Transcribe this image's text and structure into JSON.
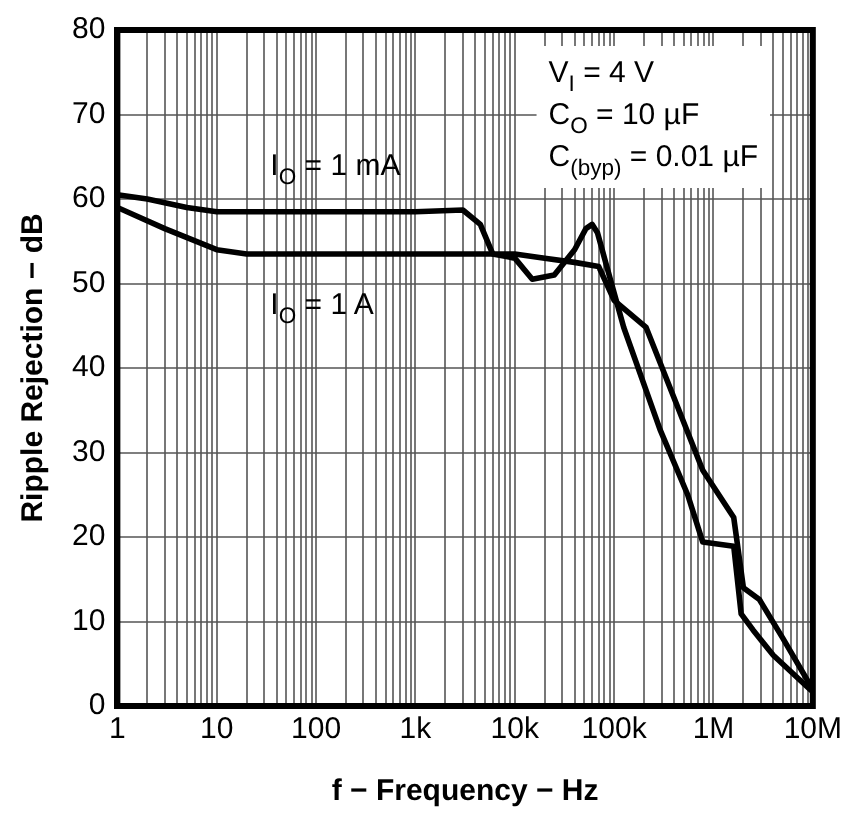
{
  "chart_data": {
    "type": "line",
    "xlabel": "f − Frequency − Hz",
    "ylabel": "Ripple Rejection − dB",
    "annotations": [
      "V$_{I}$ = 4 V",
      "C$_{O}$ = 10 µF",
      "C$_{(byp)}$ = 0.01 µF"
    ],
    "log": "x",
    "grid": true,
    "legend": false,
    "marker": "none",
    "line_style": "solid",
    "xlim": [
      1,
      10000000
    ],
    "ylim": [
      0,
      80
    ],
    "yticks": [
      0,
      10,
      20,
      30,
      40,
      50,
      60,
      70,
      80
    ],
    "xticks": [
      1,
      {
        "value": 2,
        "label": null
      },
      {
        "value": 3,
        "label": null
      },
      {
        "value": 4,
        "label": null
      },
      {
        "value": 5,
        "label": null
      },
      {
        "value": 6,
        "label": null
      },
      {
        "value": 7,
        "label": null
      },
      {
        "value": 8,
        "label": null
      },
      {
        "value": 9,
        "label": null
      },
      10,
      {
        "value": 20,
        "label": null
      },
      {
        "value": 30,
        "label": null
      },
      {
        "value": 40,
        "label": null
      },
      {
        "value": 50,
        "label": null
      },
      {
        "value": 60,
        "label": null
      },
      {
        "value": 70,
        "label": null
      },
      {
        "value": 80,
        "label": null
      },
      {
        "value": 90,
        "label": null
      },
      100,
      {
        "value": 200,
        "label": null
      },
      {
        "value": 300,
        "label": null
      },
      {
        "value": 400,
        "label": null
      },
      {
        "value": 500,
        "label": null
      },
      {
        "value": 600,
        "label": null
      },
      {
        "value": 700,
        "label": null
      },
      {
        "value": 800,
        "label": null
      },
      {
        "value": 900,
        "label": null
      },
      {
        "value": 1000,
        "label": "1k"
      },
      {
        "value": 2000,
        "label": null
      },
      {
        "value": 3000,
        "label": null
      },
      {
        "value": 4000,
        "label": null
      },
      {
        "value": 5000,
        "label": null
      },
      {
        "value": 6000,
        "label": null
      },
      {
        "value": 7000,
        "label": null
      },
      {
        "value": 8000,
        "label": null
      },
      {
        "value": 9000,
        "label": null
      },
      {
        "value": 10000,
        "label": "10k"
      },
      {
        "value": 20000,
        "label": null
      },
      {
        "value": 30000,
        "label": null
      },
      {
        "value": 40000,
        "label": null
      },
      {
        "value": 50000,
        "label": null
      },
      {
        "value": 60000,
        "label": null
      },
      {
        "value": 70000,
        "label": null
      },
      {
        "value": 80000,
        "label": null
      },
      {
        "value": 90000,
        "label": null
      },
      {
        "value": 100000,
        "label": "100k"
      },
      {
        "value": 200000,
        "label": null
      },
      {
        "value": 300000,
        "label": null
      },
      {
        "value": 400000,
        "label": null
      },
      {
        "value": 500000,
        "label": null
      },
      {
        "value": 600000,
        "label": null
      },
      {
        "value": 700000,
        "label": null
      },
      {
        "value": 800000,
        "label": null
      },
      {
        "value": 900000,
        "label": null
      },
      {
        "value": 1000000,
        "label": "1M"
      },
      {
        "value": 2000000,
        "label": null
      },
      {
        "value": 3000000,
        "label": null
      },
      {
        "value": 4000000,
        "label": null
      },
      {
        "value": 5000000,
        "label": null
      },
      {
        "value": 6000000,
        "label": null
      },
      {
        "value": 7000000,
        "label": null
      },
      {
        "value": 8000000,
        "label": null
      },
      {
        "value": 9000000,
        "label": null
      },
      {
        "value": 10000000,
        "label": "10M"
      }
    ],
    "series": [
      {
        "name": "I$_{O}$ = 1 mA",
        "color": "#000000",
        "x": [
          1,
          2,
          5,
          10,
          100,
          1000,
          3000,
          4500,
          6000,
          10000,
          15000,
          25000,
          40000,
          52000,
          60000,
          68000,
          80000,
          125000,
          290000,
          550000,
          780000,
          1600000,
          1900000,
          2500000,
          4000000,
          9500000
        ],
        "values": [
          60.5,
          60,
          59,
          58.5,
          58.5,
          58.5,
          58.7,
          57,
          53.5,
          53,
          50.5,
          51,
          54,
          56.5,
          57,
          56,
          53,
          44.8,
          32.7,
          25,
          19.4,
          18.9,
          10.9,
          9,
          6,
          1.9
        ]
      },
      {
        "name": "I$_{O}$ = 1 A",
        "color": "#000000",
        "x": [
          1,
          3,
          10,
          20,
          100,
          1000,
          10000,
          20000,
          40000,
          70000,
          100000,
          210000,
          780000,
          1600000,
          2000000,
          2900000,
          5000000,
          9500000
        ],
        "values": [
          59,
          56.5,
          54,
          53.5,
          53.5,
          53.5,
          53.5,
          53,
          52.5,
          52,
          48,
          44.8,
          27.9,
          22.3,
          14,
          12.6,
          8,
          2.4
        ]
      }
    ]
  }
}
